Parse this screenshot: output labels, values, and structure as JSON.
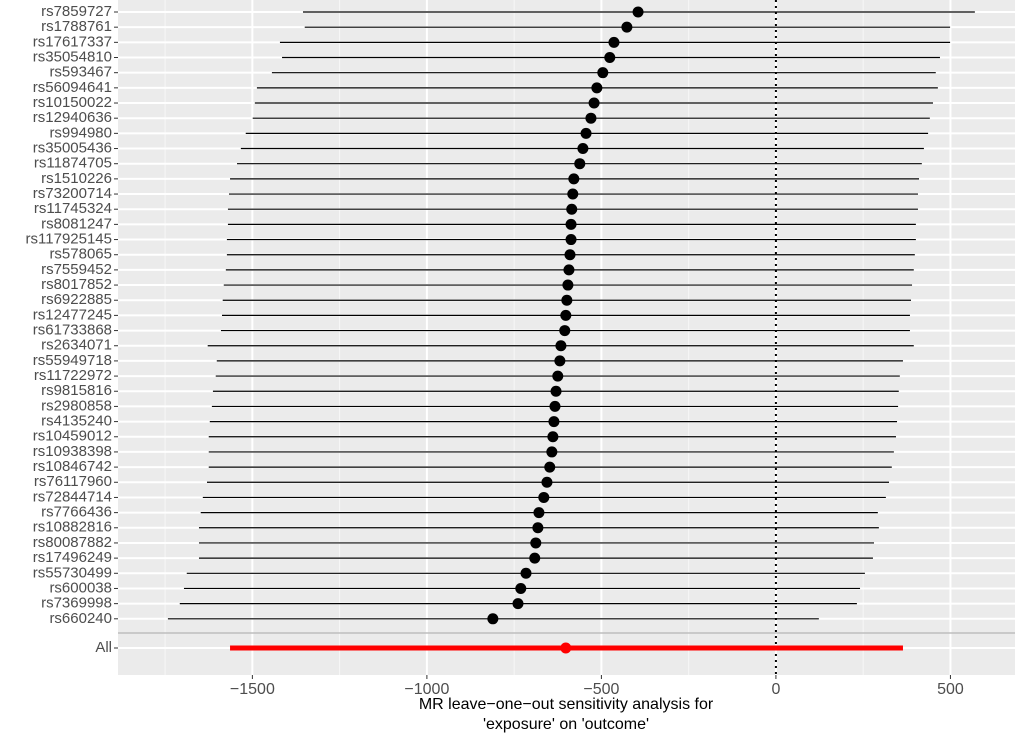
{
  "chart_data": {
    "type": "forest",
    "categories": [
      "rs7859727",
      "rs1788761",
      "rs17617337",
      "rs35054810",
      "rs593467",
      "rs56094641",
      "rs10150022",
      "rs12940636",
      "rs994980",
      "rs35005436",
      "rs11874705",
      "rs1510226",
      "rs73200714",
      "rs11745324",
      "rs8081247",
      "rs117925145",
      "rs578065",
      "rs7559452",
      "rs8017852",
      "rs6922885",
      "rs12477245",
      "rs61733868",
      "rs2634071",
      "rs55949718",
      "rs11722972",
      "rs9815816",
      "rs2980858",
      "rs4135240",
      "rs10459012",
      "rs10938398",
      "rs10846742",
      "rs76117960",
      "rs72844714",
      "rs7766436",
      "rs10882816",
      "rs80087882",
      "rs17496249",
      "rs55730499",
      "rs600038",
      "rs7369998",
      "rs660240",
      "All"
    ],
    "values": [
      -395,
      -427,
      -464,
      -476,
      -496,
      -513,
      -521,
      -530,
      -544,
      -553,
      -562,
      -579,
      -582,
      -585,
      -587,
      -587,
      -590,
      -593,
      -596,
      -599,
      -602,
      -605,
      -616,
      -619,
      -625,
      -630,
      -633,
      -636,
      -639,
      -642,
      -648,
      -656,
      -665,
      -679,
      -682,
      -688,
      -691,
      -716,
      -731,
      -739,
      -811,
      -602
    ],
    "ci_lower": [
      -1355,
      -1350,
      -1421,
      -1415,
      -1444,
      -1487,
      -1493,
      -1499,
      -1519,
      -1533,
      -1544,
      -1564,
      -1567,
      -1570,
      -1570,
      -1573,
      -1573,
      -1576,
      -1582,
      -1585,
      -1587,
      -1590,
      -1628,
      -1602,
      -1605,
      -1613,
      -1616,
      -1622,
      -1625,
      -1625,
      -1625,
      -1630,
      -1642,
      -1648,
      -1653,
      -1653,
      -1653,
      -1688,
      -1696,
      -1708,
      -1742,
      -1564
    ],
    "ci_upper": [
      570,
      499,
      499,
      470,
      458,
      464,
      450,
      441,
      436,
      424,
      418,
      410,
      407,
      407,
      401,
      401,
      398,
      395,
      390,
      387,
      384,
      384,
      395,
      364,
      355,
      352,
      350,
      347,
      344,
      338,
      332,
      324,
      315,
      292,
      295,
      281,
      278,
      255,
      241,
      232,
      123,
      364
    ],
    "color": "#000000",
    "highlight_color": "#ff0000",
    "reference_line": 0,
    "xlim": [
      -1885,
      685
    ],
    "xticks": [
      {
        "value": -1500,
        "label": "−1500"
      },
      {
        "value": -1000,
        "label": "−1000"
      },
      {
        "value": -500,
        "label": "−500"
      },
      0,
      500
    ],
    "xlabel": [
      "MR leave−one−out sensitivity analysis for",
      "'exposure' on 'outcome'"
    ],
    "grid": true
  }
}
